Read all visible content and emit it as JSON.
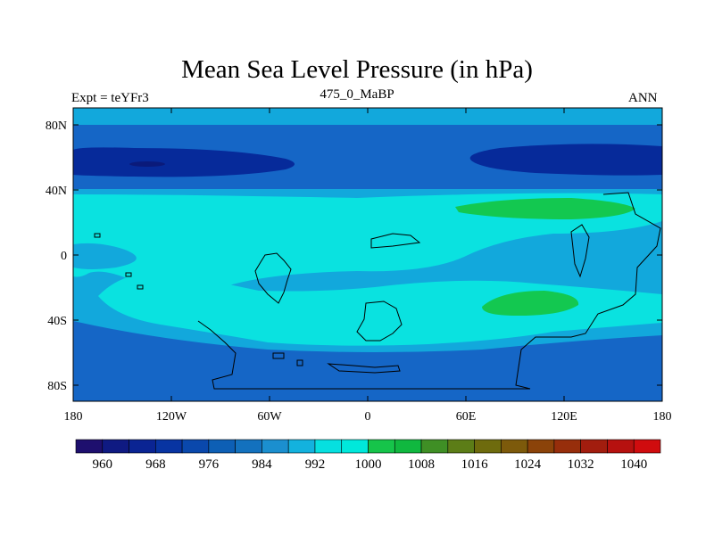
{
  "header": {
    "title": "Mean Sea Level Pressure (in hPa)",
    "left_label": "Expt = teYFr3",
    "center_label": "475_0_MaBP",
    "right_label": "ANN"
  },
  "axes": {
    "lat_ticks": [
      "80N",
      "40N",
      "0",
      "40S",
      "80S"
    ],
    "lon_ticks": [
      "180",
      "120W",
      "60W",
      "0",
      "60E",
      "120E",
      "180"
    ]
  },
  "colorbar": {
    "colors": [
      "#1e0f6e",
      "#0f1a82",
      "#0a2493",
      "#0834a2",
      "#0a48ac",
      "#0d5fb5",
      "#1371be",
      "#1b8fcf",
      "#13b2de",
      "#06e0e0",
      "#00e8db",
      "#16c44a",
      "#10b83f",
      "#3f8f25",
      "#5c7d17",
      "#6e6b0d",
      "#7d5a0b",
      "#8b4309",
      "#972e0b",
      "#a21d0e",
      "#b6110f",
      "#d00c0e"
    ],
    "labels": [
      "960",
      "968",
      "976",
      "984",
      "992",
      "1000",
      "1008",
      "1016",
      "1024",
      "1032",
      "1040"
    ]
  },
  "field_colors": {
    "deep_low": "#062a9a",
    "core_low": "#0a1a7a",
    "low": "#1566c6",
    "mid": "#12a8dc",
    "high": "#0ae2e0",
    "highest": "#13c850",
    "coast": "#000000"
  }
}
